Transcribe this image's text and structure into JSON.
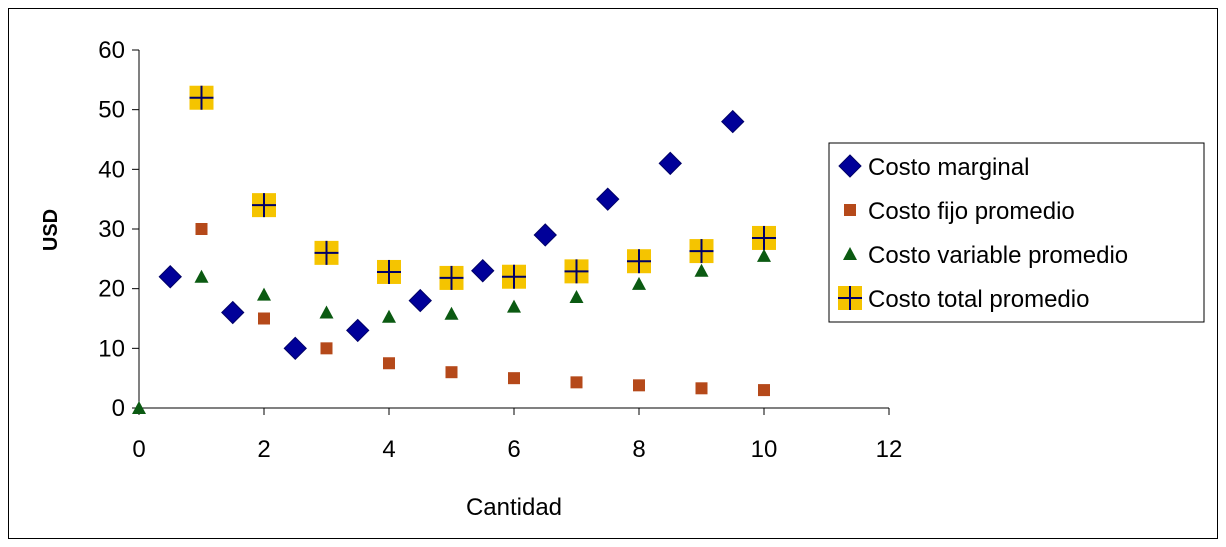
{
  "chart_data": {
    "type": "scatter",
    "title": "",
    "xlabel": "Cantidad",
    "ylabel": "USD",
    "xlim": [
      0,
      12
    ],
    "ylim": [
      0,
      60
    ],
    "xticks": [
      "0",
      "2",
      "4",
      "6",
      "8",
      "10",
      "12"
    ],
    "yticks": [
      "0",
      "10",
      "20",
      "30",
      "40",
      "50",
      "60"
    ],
    "grid": false,
    "legend_position": "right",
    "series": [
      {
        "name": "Costo marginal",
        "marker": "diamond",
        "color": "#000099",
        "points": [
          [
            0.5,
            22
          ],
          [
            1.5,
            16
          ],
          [
            2.5,
            10
          ],
          [
            3.5,
            13
          ],
          [
            4.5,
            18
          ],
          [
            5.5,
            23
          ],
          [
            6.5,
            29
          ],
          [
            7.5,
            35
          ],
          [
            8.5,
            41
          ],
          [
            9.5,
            48
          ]
        ]
      },
      {
        "name": "Costo fijo promedio",
        "marker": "square",
        "color": "#B5491A",
        "points": [
          [
            1,
            30
          ],
          [
            2,
            15
          ],
          [
            3,
            10
          ],
          [
            4,
            7.5
          ],
          [
            5,
            6
          ],
          [
            6,
            5
          ],
          [
            7,
            4.3
          ],
          [
            8,
            3.8
          ],
          [
            9,
            3.3
          ],
          [
            10,
            3
          ]
        ]
      },
      {
        "name": "Costo variable promedio",
        "marker": "triangle",
        "color": "#0B5A12",
        "points": [
          [
            0,
            0
          ],
          [
            1,
            22
          ],
          [
            2,
            19
          ],
          [
            3,
            16
          ],
          [
            4,
            15.3
          ],
          [
            5,
            15.8
          ],
          [
            6,
            17
          ],
          [
            7,
            18.6
          ],
          [
            8,
            20.8
          ],
          [
            9,
            23
          ],
          [
            10,
            25.5
          ]
        ]
      },
      {
        "name": "Costo total promedio",
        "marker": "plus-box",
        "color": "#F5C400",
        "cross_color": "#000066",
        "points": [
          [
            1,
            52
          ],
          [
            2,
            34
          ],
          [
            3,
            26
          ],
          [
            4,
            22.8
          ],
          [
            5,
            21.8
          ],
          [
            6,
            22
          ],
          [
            7,
            22.9
          ],
          [
            8,
            24.6
          ],
          [
            9,
            26.3
          ],
          [
            10,
            28.5
          ]
        ]
      }
    ]
  }
}
